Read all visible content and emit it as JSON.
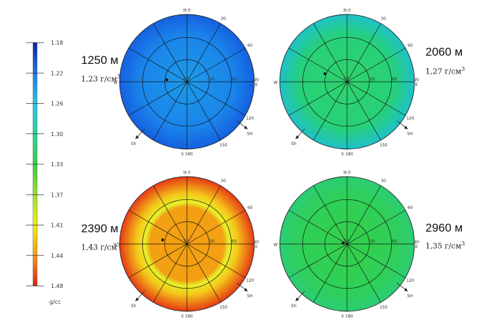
{
  "chart_data": {
    "type": "heatmap",
    "subtype": "polar-stereonet",
    "colorbar": {
      "unit": "g/cc",
      "ticks": [
        "1.18",
        "1.22",
        "1.26",
        "1.30",
        "1.33",
        "1.37",
        "1.41",
        "1.44",
        "1.48"
      ],
      "colors": [
        "#0a1fae",
        "#1f78e6",
        "#1ec8e8",
        "#22d7a0",
        "#30d046",
        "#9fe22a",
        "#f6ee14",
        "#f59a0f",
        "#e01e14"
      ]
    },
    "plot_labels": {
      "north": "N 0",
      "east": "90\nE",
      "south": "S 180",
      "west": "W",
      "angles": [
        "30",
        "60",
        "120",
        "150"
      ],
      "radial": [
        "30",
        "60"
      ],
      "sh": "SH",
      "sh_short": "Sh"
    },
    "panels": [
      {
        "depth": "1250 м",
        "density": "1,23 г/см",
        "density_unit_power": "3",
        "mean_value": 1.23,
        "point_dir": [
          -0.5,
          -0.05
        ]
      },
      {
        "depth": "2060 м",
        "density": "1,27 г/см",
        "density_unit_power": "3",
        "mean_value": 1.27,
        "point_dir": [
          -0.55,
          -0.2
        ]
      },
      {
        "depth": "2390 м",
        "density": "1,43 г/см",
        "density_unit_power": "3",
        "mean_value": 1.43,
        "point_dir": [
          -0.6,
          -0.1
        ]
      },
      {
        "depth": "2960 м",
        "density": "1,35 г/см",
        "density_unit_power": "3",
        "mean_value": 1.35,
        "point_dir": [
          -0.1,
          -0.02
        ]
      }
    ]
  }
}
